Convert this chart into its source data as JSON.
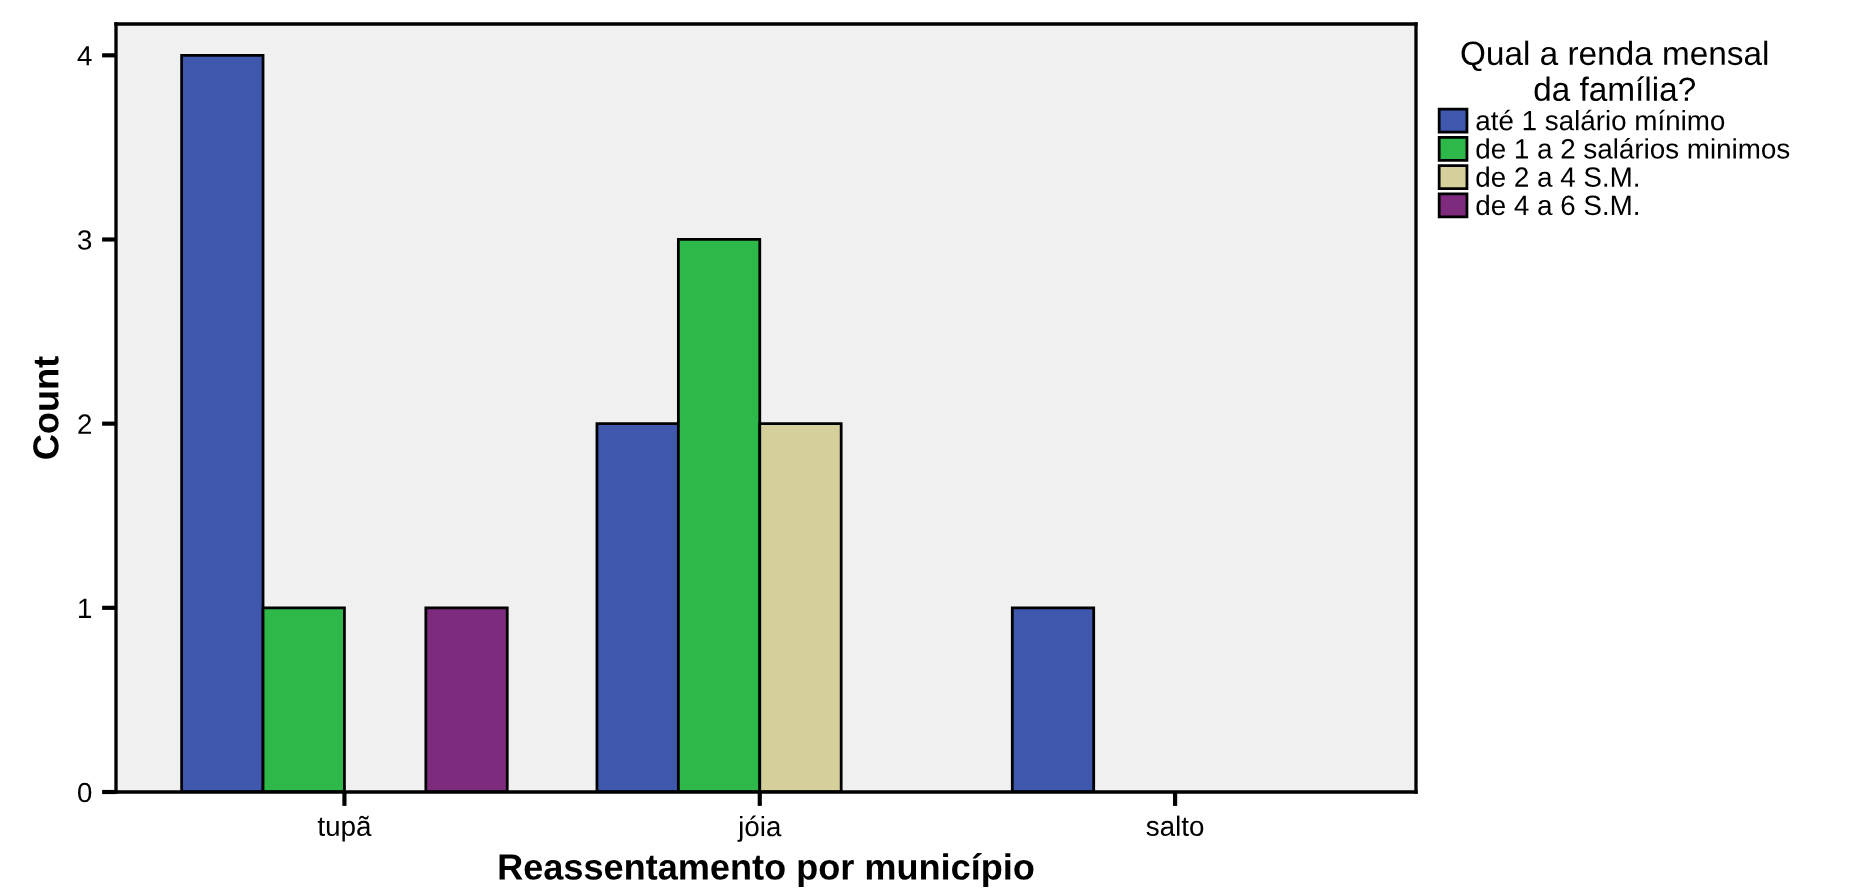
{
  "chart_data": {
    "type": "bar",
    "xlabel": "Reassentamento por município",
    "ylabel": "Count",
    "legend_title": "Qual a renda mensal\nda família?",
    "categories": [
      "tupã",
      "jóia",
      "salto"
    ],
    "series": [
      {
        "name": "até 1 salário mínimo",
        "color": "#3f58ae",
        "values": [
          4,
          2,
          1
        ]
      },
      {
        "name": "de 1 a 2 salários minimos",
        "color": "#2fb84a",
        "values": [
          1,
          3,
          null
        ]
      },
      {
        "name": "de 2 a 4 S.M.",
        "color": "#d4cf9b",
        "values": [
          null,
          2,
          null
        ]
      },
      {
        "name": "de 4 a 6 S.M.",
        "color": "#7e2b7e",
        "values": [
          1,
          null,
          null
        ]
      }
    ],
    "ylim": [
      0,
      4.17
    ],
    "yticks": [
      0,
      1,
      2,
      3,
      4
    ],
    "grid": false,
    "legend": "right"
  }
}
